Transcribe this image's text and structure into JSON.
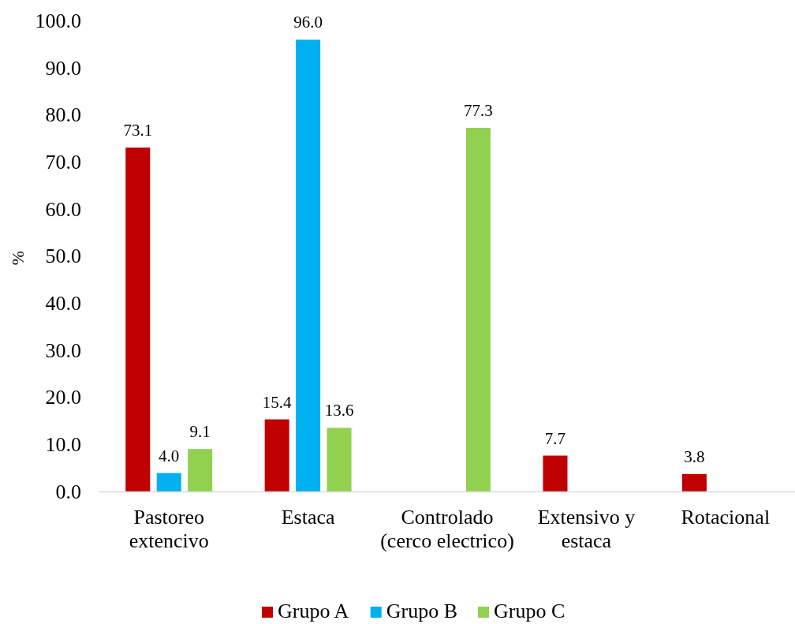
{
  "chart_data": {
    "type": "bar",
    "ylabel": "%",
    "categories": [
      "Pastoreo extencivo",
      "Estaca",
      "Controlado (cerco electrico)",
      "Extensivo y estaca",
      "Rotacional"
    ],
    "series": [
      {
        "name": "Grupo A",
        "color": "#c00000",
        "values": [
          73.1,
          15.4,
          null,
          7.7,
          3.8
        ],
        "value_labels": [
          "73.1",
          "15.4",
          null,
          "7.7",
          "3.8"
        ]
      },
      {
        "name": "Grupo B",
        "color": "#00b0f0",
        "values": [
          4.0,
          96.0,
          null,
          null,
          null
        ],
        "value_labels": [
          "4.0",
          "96.0",
          null,
          null,
          null
        ]
      },
      {
        "name": "Grupo C",
        "color": "#92d050",
        "values": [
          9.1,
          13.6,
          77.3,
          null,
          null
        ],
        "value_labels": [
          "9.1",
          "13.6",
          "77.3",
          null,
          null
        ]
      }
    ],
    "ylim": [
      0,
      100
    ],
    "yticks": [
      {
        "value": 0,
        "label": "0.0"
      },
      {
        "value": 10,
        "label": "10.0"
      },
      {
        "value": 20,
        "label": "20.0"
      },
      {
        "value": 30,
        "label": "30.0"
      },
      {
        "value": 40,
        "label": "40.0"
      },
      {
        "value": 50,
        "label": "50.0"
      },
      {
        "value": 60,
        "label": "60.0"
      },
      {
        "value": 70,
        "label": "70.0"
      },
      {
        "value": 80,
        "label": "80.0"
      },
      {
        "value": 90,
        "label": "90.0"
      },
      {
        "value": 100,
        "label": "100.0"
      }
    ],
    "legend": "bottom"
  }
}
